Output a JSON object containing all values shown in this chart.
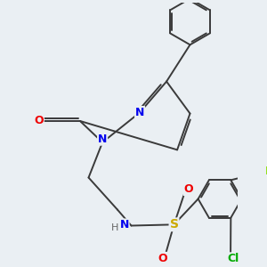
{
  "background_color": "#eaeff3",
  "bond_color": "#3a3a3a",
  "bond_width": 1.4,
  "font_size": 9,
  "fig_size": [
    3.0,
    3.0
  ],
  "dpi": 100,
  "atom_colors": {
    "N": "#0000ee",
    "O": "#ee0000",
    "S": "#ccaa00",
    "F": "#88dd00",
    "Cl": "#00aa00",
    "C": "#3a3a3a",
    "H": "#666666"
  }
}
